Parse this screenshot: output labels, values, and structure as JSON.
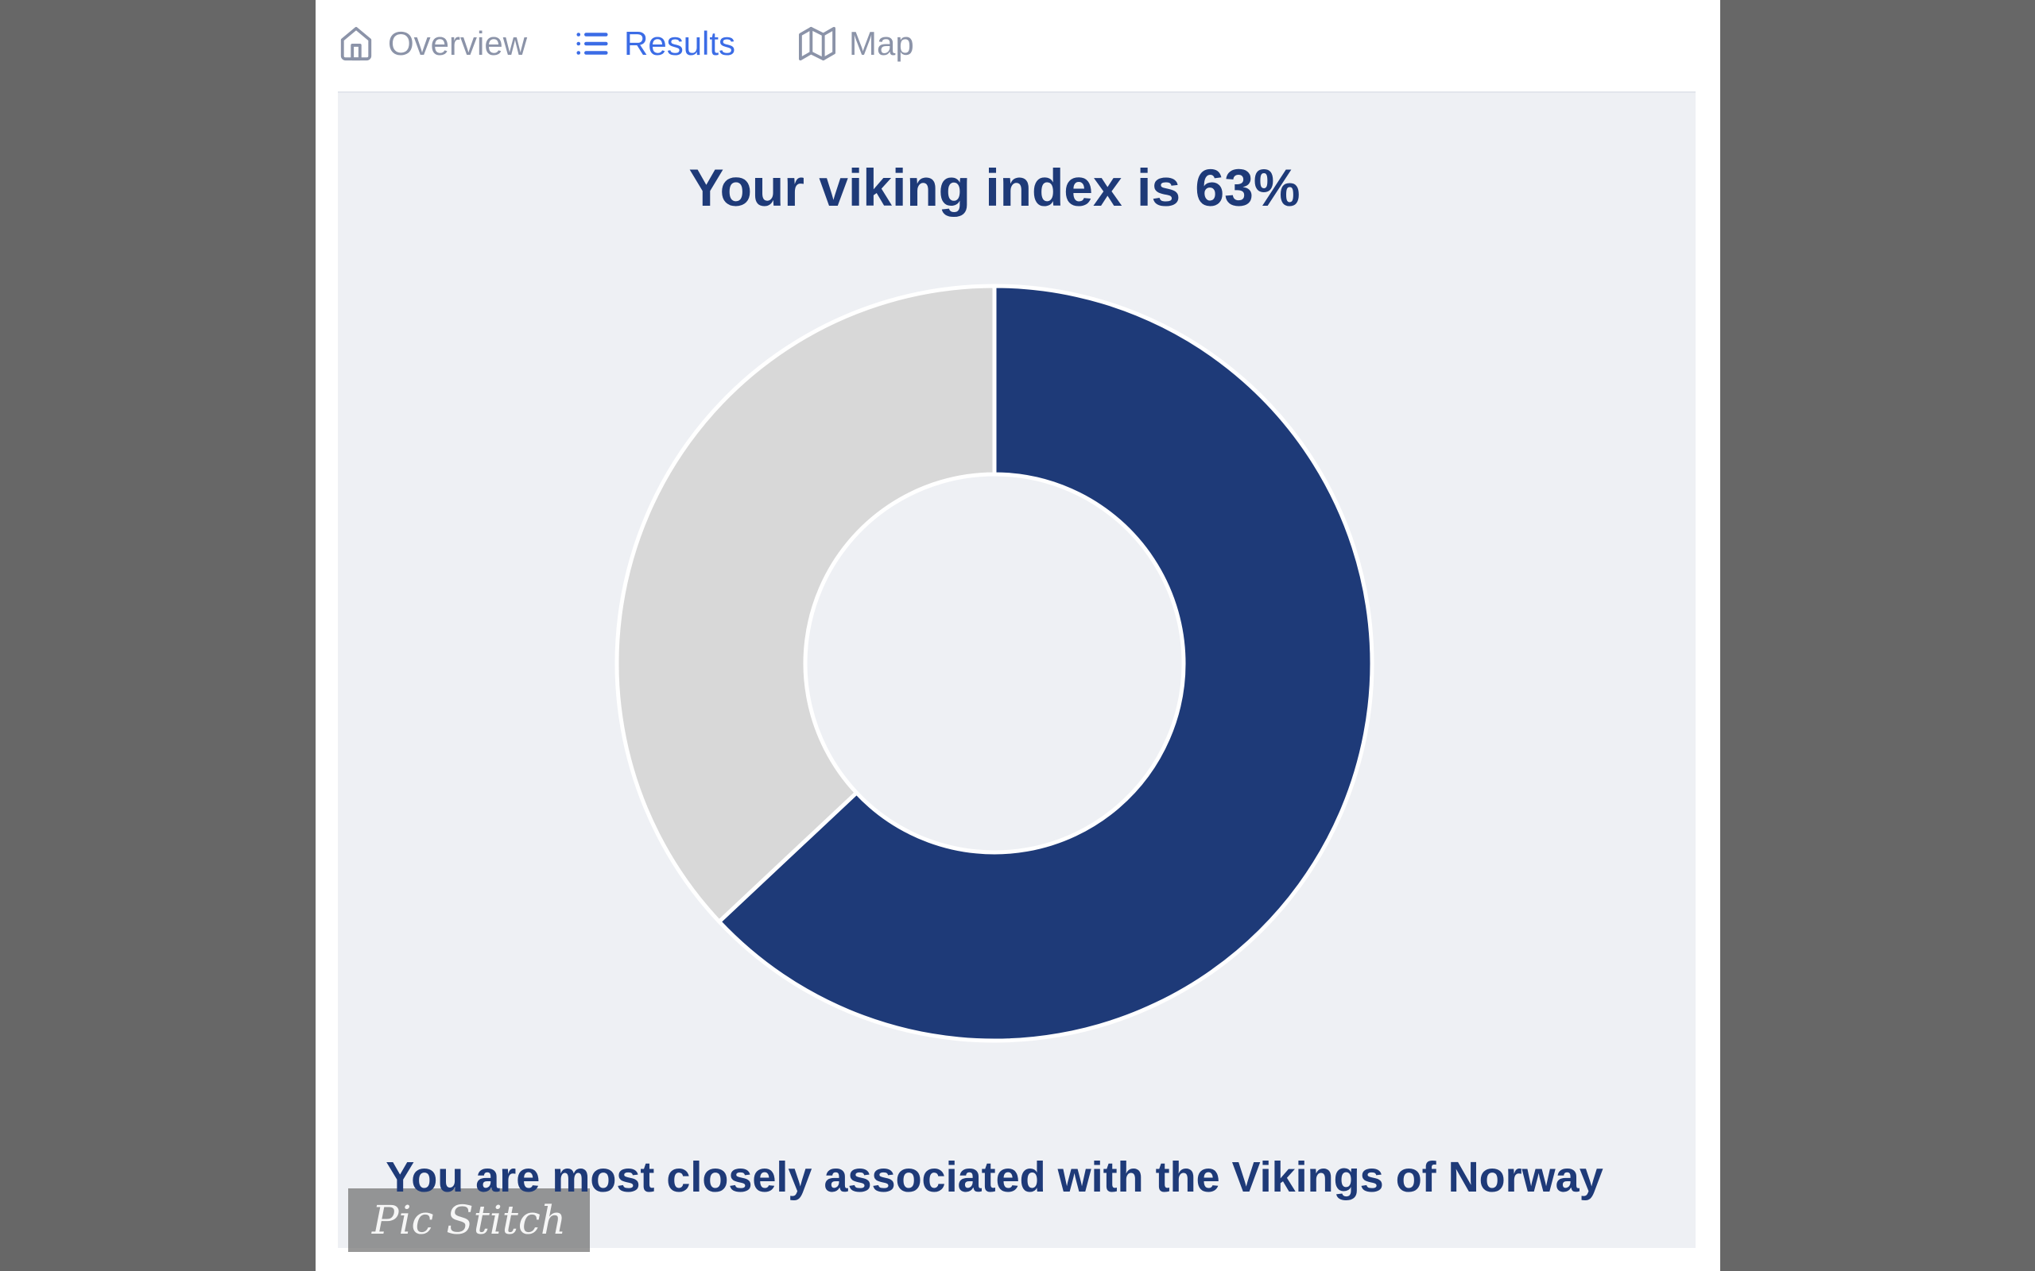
{
  "tabs": [
    {
      "label": "Overview",
      "icon": "home-icon",
      "active": false
    },
    {
      "label": "Results",
      "icon": "list-icon",
      "active": true
    },
    {
      "label": "Map",
      "icon": "map-icon",
      "active": false
    }
  ],
  "result": {
    "title": "Your viking index is 63%",
    "subtitle": "You are most closely associated with the Vikings of Norway"
  },
  "watermark": {
    "label": "Pic Stitch"
  },
  "colors": {
    "accent_active_tab": "#3b6ce6",
    "tab_inactive": "#8b93a8",
    "title_navy": "#1e3a78",
    "panel_background": "#eef0f4",
    "letterbox_gray": "#676767",
    "watermark_background": "#9a9a9a",
    "watermark_text": "#f6f6f6"
  },
  "chart_data": {
    "type": "pie",
    "subtype": "donut",
    "title": "Your viking index is 63%",
    "slices": [
      {
        "label": "viking_index",
        "value": 63,
        "color": "#1e3a78"
      },
      {
        "label": "remainder",
        "value": 37,
        "color": "#d8d8d8"
      }
    ],
    "hole_ratio": 0.5,
    "start_angle_deg": 0,
    "direction": "clockwise",
    "slice_divider_color": "#ffffff",
    "legend": false,
    "annotation": "You are most closely associated with the Vikings of Norway"
  }
}
